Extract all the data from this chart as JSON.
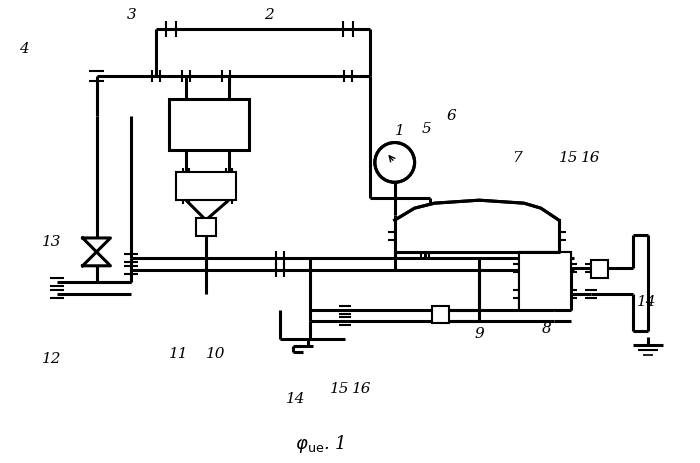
{
  "bg_color": "#ffffff",
  "line_color": "#000000",
  "lw": 1.5,
  "lw2": 2.2
}
